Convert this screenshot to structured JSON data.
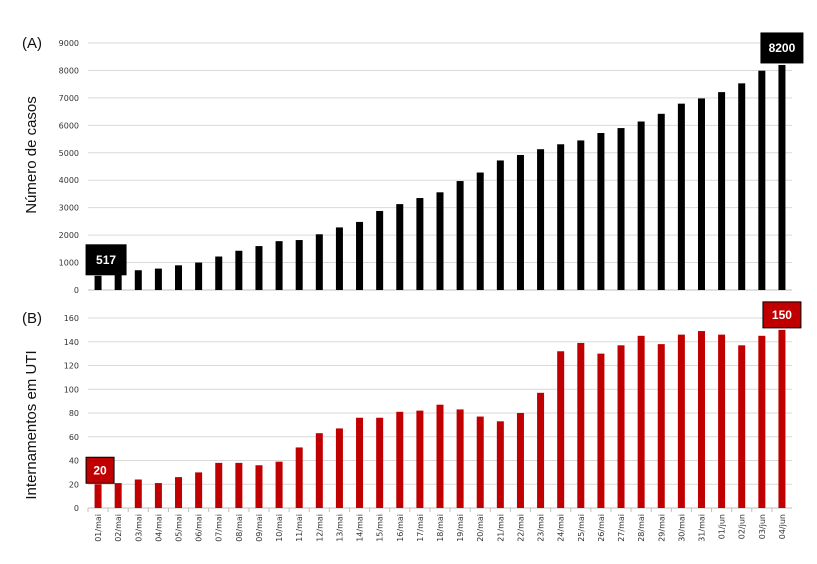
{
  "chart_data": [
    {
      "type": "bar",
      "panel_label": "(A)",
      "ylabel": "Número de casos",
      "ylim": [
        0,
        9000
      ],
      "yticks": [
        0,
        1000,
        2000,
        3000,
        4000,
        5000,
        6000,
        7000,
        8000,
        9000
      ],
      "grid": true,
      "color": "#000000",
      "categories": [
        "01/mai",
        "02/mai",
        "03/mai",
        "04/mai",
        "05/mai",
        "06/mai",
        "07/mai",
        "08/mai",
        "09/mai",
        "10/mai",
        "11/mai",
        "12/mai",
        "13/mai",
        "14/mai",
        "15/mai",
        "16/mai",
        "17/mai",
        "18/mai",
        "19/mai",
        "20/mai",
        "21/mai",
        "22/mai",
        "23/mai",
        "24/mai",
        "25/mai",
        "26/mai",
        "27/mai",
        "28/mai",
        "29/mai",
        "30/mai",
        "31/mai",
        "01/jun",
        "02/jun",
        "03/jun",
        "04/jun"
      ],
      "values": [
        517,
        620,
        720,
        780,
        900,
        1000,
        1220,
        1430,
        1600,
        1780,
        1820,
        2030,
        2280,
        2480,
        2880,
        3130,
        3350,
        3560,
        3970,
        4280,
        4720,
        4920,
        5130,
        5310,
        5450,
        5720,
        5900,
        6140,
        6420,
        6790,
        6980,
        7210,
        7530,
        7990,
        8200
      ],
      "annotations": [
        {
          "category": "01/mai",
          "text": "517"
        },
        {
          "category": "04/jun",
          "text": "8200"
        }
      ]
    },
    {
      "type": "bar",
      "panel_label": "(B)",
      "ylabel": "Internamentos em UTI",
      "ylim": [
        0,
        160
      ],
      "yticks": [
        0,
        20,
        40,
        60,
        80,
        100,
        120,
        140,
        160
      ],
      "grid": true,
      "color": "#c00000",
      "categories": [
        "01/mai",
        "02/mai",
        "03/mai",
        "04/mai",
        "05/mai",
        "06/mai",
        "07/mai",
        "08/mai",
        "09/mai",
        "10/mai",
        "11/mai",
        "12/mai",
        "13/mai",
        "14/mai",
        "15/mai",
        "16/mai",
        "17/mai",
        "18/mai",
        "19/mai",
        "20/mai",
        "21/mai",
        "22/mai",
        "23/mai",
        "24/mai",
        "25/mai",
        "26/mai",
        "27/mai",
        "28/mai",
        "29/mai",
        "30/mai",
        "31/mai",
        "01/jun",
        "02/jun",
        "03/jun",
        "04/jun"
      ],
      "values": [
        20,
        21,
        24,
        21,
        26,
        30,
        38,
        38,
        36,
        39,
        51,
        63,
        67,
        76,
        76,
        81,
        82,
        87,
        83,
        77,
        73,
        80,
        97,
        132,
        139,
        130,
        137,
        145,
        138,
        146,
        149,
        146,
        137,
        145,
        150
      ],
      "annotations": [
        {
          "category": "01/mai",
          "text": "20"
        },
        {
          "category": "04/jun",
          "text": "150"
        }
      ]
    }
  ]
}
